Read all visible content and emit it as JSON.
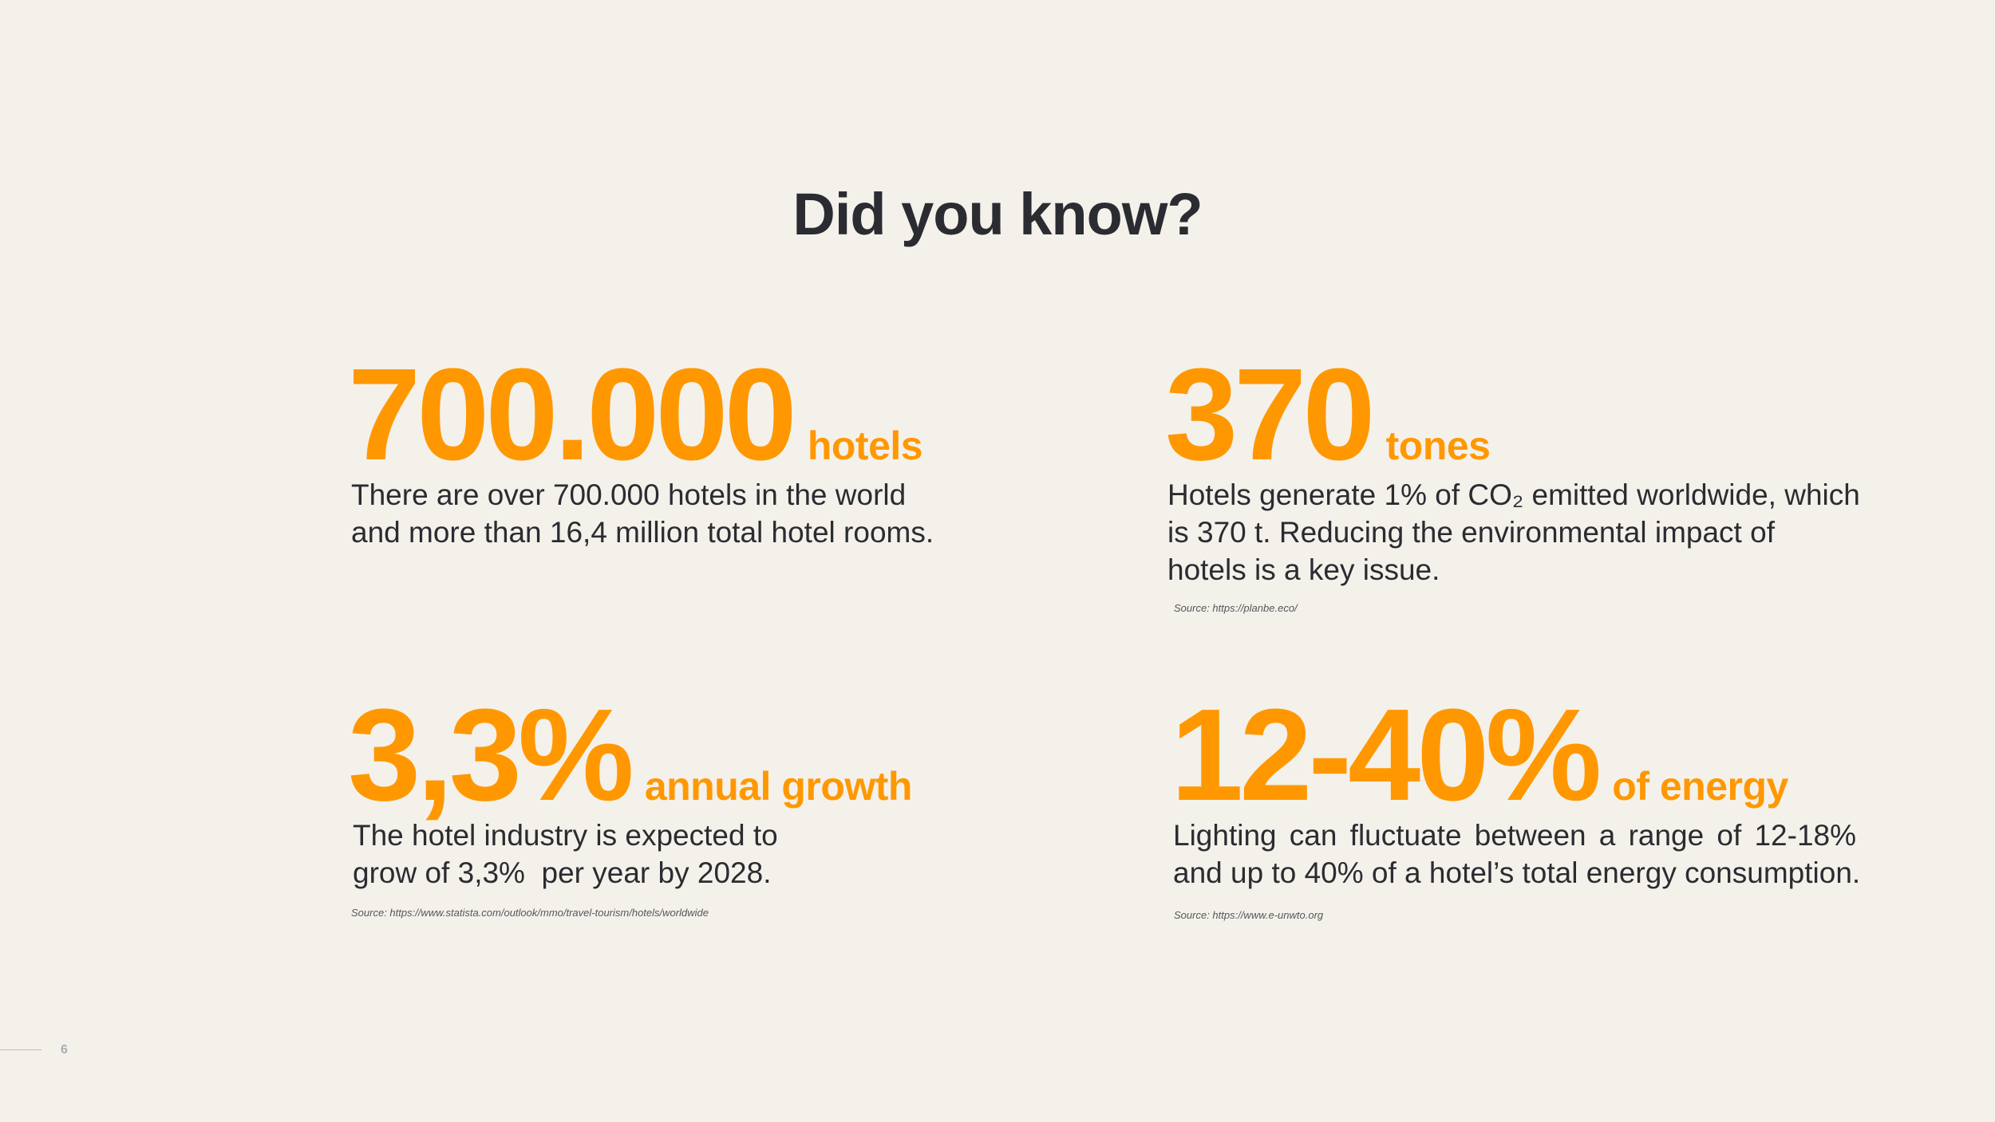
{
  "title": "Did you know?",
  "facts": [
    {
      "number": "700.000",
      "unit": "hotels",
      "description_lines": [
        "There are over 700.000 hotels in the world",
        "and more than 16,4 million total hotel rooms."
      ],
      "source": ""
    },
    {
      "number": "370",
      "unit": "tones",
      "description_lines": [
        "Hotels generate 1% of CO₂ emitted worldwide, which",
        "is 370 t. Reducing the environmental impact of",
        "hotels is a key issue."
      ],
      "source": "Source: https://planbe.eco/"
    },
    {
      "number": "3,3%",
      "unit": "annual growth",
      "description_lines": [
        "The hotel industry is expected to",
        "grow of 3,3%  per year by 2028."
      ],
      "source": "Source: https://www.statista.com/outlook/mmo/travel-tourism/hotels/worldwide"
    },
    {
      "number": "12-40%",
      "unit": "of energy",
      "description_lines": [
        "Lighting can fluctuate between a range of 12-18%",
        "and up to 40% of a hotel’s total energy consumption."
      ],
      "source": "Source: https://www.e-unwto.org"
    }
  ],
  "page_number": "6",
  "colors": {
    "accent": "#ff9800",
    "text": "#2b2c31",
    "background": "#f4f1eb"
  }
}
